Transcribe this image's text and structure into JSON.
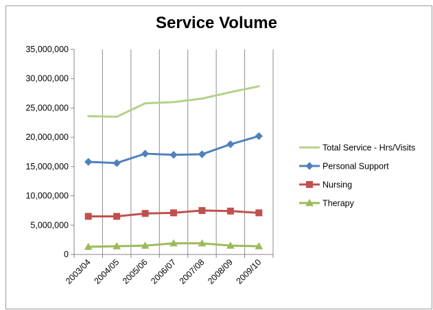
{
  "chart_data": {
    "type": "line",
    "title": "Service Volume",
    "xlabel": "",
    "ylabel": "",
    "categories": [
      "2003/04",
      "2004/05",
      "2005/06",
      "2006/07",
      "2007/08",
      "2008/09",
      "2009/10"
    ],
    "ylim": [
      0,
      35000000
    ],
    "y_ticks": [
      "0",
      "5,000,000",
      "10,000,000",
      "15,000,000",
      "20,000,000",
      "25,000,000",
      "30,000,000",
      "35,000,000"
    ],
    "grid": "vertical",
    "legend_position": "right",
    "series": [
      {
        "name": "Total Service - Hrs/Visits",
        "color": "#9bbb59",
        "line_color": "#b3d289",
        "marker": "none",
        "values": [
          23600000,
          23500000,
          25800000,
          26000000,
          26600000,
          27700000,
          28700000
        ]
      },
      {
        "name": "Personal Support",
        "color": "#4f81bd",
        "line_color": "#4f81bd",
        "marker": "diamond",
        "values": [
          15800000,
          15600000,
          17200000,
          17000000,
          17100000,
          18800000,
          20200000
        ]
      },
      {
        "name": "Nursing",
        "color": "#c0504d",
        "line_color": "#c0504d",
        "marker": "square",
        "values": [
          6500000,
          6500000,
          7000000,
          7100000,
          7500000,
          7400000,
          7100000
        ]
      },
      {
        "name": "Therapy",
        "color": "#9bbb59",
        "line_color": "#9bbb59",
        "marker": "triangle",
        "values": [
          1300000,
          1400000,
          1500000,
          1900000,
          1900000,
          1500000,
          1400000
        ]
      }
    ]
  }
}
